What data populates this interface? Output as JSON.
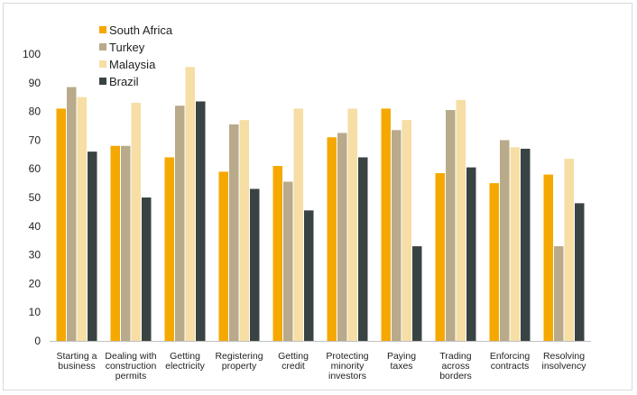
{
  "chart_data": {
    "type": "bar",
    "title": "",
    "xlabel": "",
    "ylabel": "",
    "ylim": [
      0,
      100
    ],
    "yticks": [
      0,
      10,
      20,
      30,
      40,
      50,
      60,
      70,
      80,
      90,
      100
    ],
    "grid": false,
    "legend_position": "top-left",
    "categories": [
      [
        "Starting a",
        "business"
      ],
      [
        "Dealing with",
        "construction",
        "permits"
      ],
      [
        "Getting",
        "electricity"
      ],
      [
        "Registering",
        "property"
      ],
      [
        "Getting",
        "credit"
      ],
      [
        "Protecting",
        "minority",
        "investors"
      ],
      [
        "Paying",
        "taxes"
      ],
      [
        "Trading",
        "across",
        "borders"
      ],
      [
        "Enforcing",
        "contracts"
      ],
      [
        "Resolving",
        "insolvency"
      ]
    ],
    "series": [
      {
        "name": "South Africa",
        "color": "#f5a800",
        "values": [
          81,
          68,
          64,
          59,
          61,
          71,
          81,
          58.5,
          55,
          58
        ]
      },
      {
        "name": "Turkey",
        "color": "#b8aa8a",
        "values": [
          88.5,
          68,
          82,
          75.5,
          55.5,
          72.5,
          73.5,
          80.5,
          70,
          33
        ]
      },
      {
        "name": "Malaysia",
        "color": "#f6dea4",
        "values": [
          85,
          83,
          95.5,
          77,
          81,
          81,
          77,
          84,
          67.5,
          63.5
        ]
      },
      {
        "name": "Brazil",
        "color": "#3a4343",
        "values": [
          66,
          50,
          83.5,
          53,
          45.5,
          64,
          33,
          60.5,
          67,
          48
        ]
      }
    ]
  }
}
